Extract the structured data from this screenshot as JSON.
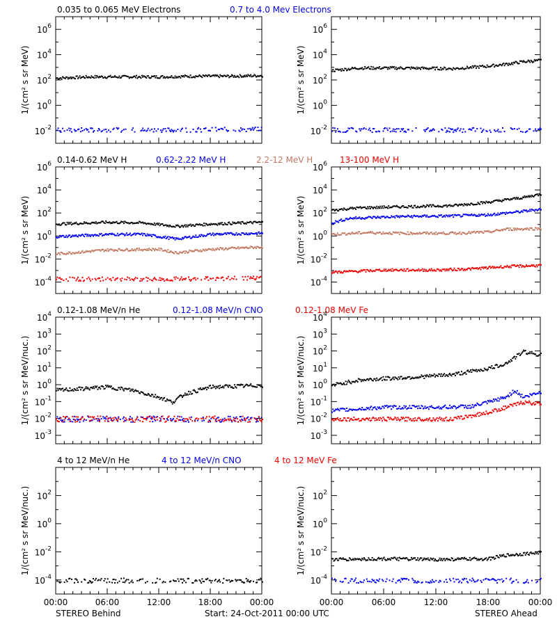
{
  "colors": {
    "black": "#000000",
    "blue": "#0000ee",
    "tan": "#c07860",
    "red": "#ee0000"
  },
  "rows": [
    {
      "ylabel": "1/(cm² s sr MeV)",
      "legend": [
        {
          "text": "0.035 to 0.065 MeV Electrons",
          "color": "#000000"
        },
        {
          "text": "0.7 to 4.0 Mev Electrons",
          "color": "#0000ee"
        }
      ]
    },
    {
      "ylabel": "1/(cm² s sr MeV)",
      "legend": [
        {
          "text": "0.14-0.62 MeV H",
          "color": "#000000"
        },
        {
          "text": "0.62-2.22 MeV H",
          "color": "#0000ee"
        },
        {
          "text": "2.2-12 MeV H",
          "color": "#c07860"
        },
        {
          "text": "13-100 MeV H",
          "color": "#ee0000"
        }
      ]
    },
    {
      "ylabel": "1/(cm² s sr MeV/nuc.)",
      "legend": [
        {
          "text": "0.12-1.08 MeV/n He",
          "color": "#000000"
        },
        {
          "text": "0.12-1.08 MeV/n CNO",
          "color": "#0000ee"
        },
        {
          "text": "0.12-1.08 MeV Fe",
          "color": "#ee0000"
        }
      ]
    },
    {
      "ylabel": "1/(cm² s sr MeV/nuc.)",
      "legend": [
        {
          "text": "4 to 12 MeV/n He",
          "color": "#000000"
        },
        {
          "text": "4 to 12 MeV/n CNO",
          "color": "#0000ee"
        },
        {
          "text": "4 to 12 MeV Fe",
          "color": "#ee0000"
        }
      ]
    }
  ],
  "xticks": [
    "00:00",
    "06:00",
    "12:00",
    "18:00",
    "00:00"
  ],
  "footer": {
    "left": "STEREO Behind",
    "center": "Start: 24-Oct-2011 00:00 UTC",
    "right": "STEREO Ahead"
  },
  "chart_data": [
    {
      "type": "scatter",
      "spacecraft": "STEREO Behind",
      "ylog": true,
      "ylim_exp": [
        -3,
        7
      ],
      "yticks": [
        -2,
        0,
        2,
        4,
        6
      ],
      "x_hours": [
        0,
        24
      ],
      "series": [
        {
          "color": "black",
          "points_hours_log10": [
            [
              0,
              2.2
            ],
            [
              4,
              2.3
            ],
            [
              8,
              2.3
            ],
            [
              12,
              2.3
            ],
            [
              16,
              2.35
            ],
            [
              20,
              2.35
            ],
            [
              24,
              2.4
            ]
          ]
        },
        {
          "color": "blue",
          "points_hours_log10": [
            [
              0,
              -1.9
            ],
            [
              12,
              -1.9
            ],
            [
              24,
              -1.85
            ]
          ]
        }
      ]
    },
    {
      "type": "scatter",
      "spacecraft": "STEREO Ahead",
      "ylog": true,
      "ylim_exp": [
        -3,
        7
      ],
      "yticks": [
        -2,
        0,
        2,
        4,
        6
      ],
      "x_hours": [
        0,
        24
      ],
      "series": [
        {
          "color": "black",
          "points_hours_log10": [
            [
              0,
              2.8
            ],
            [
              3,
              3.0
            ],
            [
              8,
              3.0
            ],
            [
              14,
              2.95
            ],
            [
              18,
              3.15
            ],
            [
              20,
              3.3
            ],
            [
              22,
              3.5
            ],
            [
              24,
              3.6
            ]
          ]
        },
        {
          "color": "blue",
          "points_hours_log10": [
            [
              0,
              -1.9
            ],
            [
              12,
              -1.9
            ],
            [
              24,
              -1.9
            ]
          ]
        }
      ]
    },
    {
      "type": "scatter",
      "spacecraft": "STEREO Behind",
      "ylog": true,
      "ylim_exp": [
        -5,
        6
      ],
      "yticks": [
        -4,
        -2,
        0,
        2,
        4,
        6
      ],
      "x_hours": [
        0,
        24
      ],
      "series": [
        {
          "color": "black",
          "points_hours_log10": [
            [
              0,
              1.1
            ],
            [
              6,
              1.25
            ],
            [
              10,
              1.2
            ],
            [
              14,
              0.9
            ],
            [
              18,
              1.1
            ],
            [
              24,
              1.25
            ]
          ]
        },
        {
          "color": "blue",
          "points_hours_log10": [
            [
              0,
              0.0
            ],
            [
              6,
              0.2
            ],
            [
              10,
              0.2
            ],
            [
              14,
              -0.2
            ],
            [
              18,
              0.2
            ],
            [
              24,
              0.3
            ]
          ]
        },
        {
          "color": "tan",
          "points_hours_log10": [
            [
              0,
              -1.5
            ],
            [
              6,
              -1.15
            ],
            [
              12,
              -1.1
            ],
            [
              14,
              -1.4
            ],
            [
              18,
              -1.1
            ],
            [
              24,
              -0.9
            ]
          ]
        },
        {
          "color": "red",
          "points_hours_log10": [
            [
              0,
              -3.7
            ],
            [
              12,
              -3.7
            ],
            [
              24,
              -3.6
            ]
          ]
        }
      ]
    },
    {
      "type": "scatter",
      "spacecraft": "STEREO Ahead",
      "ylog": true,
      "ylim_exp": [
        -5,
        6
      ],
      "yticks": [
        -4,
        -2,
        0,
        2,
        4,
        6
      ],
      "x_hours": [
        0,
        24
      ],
      "series": [
        {
          "color": "black",
          "points_hours_log10": [
            [
              0,
              2.3
            ],
            [
              3,
              2.5
            ],
            [
              8,
              2.6
            ],
            [
              14,
              2.7
            ],
            [
              18,
              3.0
            ],
            [
              22,
              3.4
            ],
            [
              24,
              3.7
            ]
          ]
        },
        {
          "color": "blue",
          "points_hours_log10": [
            [
              0,
              1.2
            ],
            [
              2,
              1.6
            ],
            [
              8,
              1.75
            ],
            [
              14,
              1.8
            ],
            [
              18,
              1.9
            ],
            [
              22,
              2.2
            ],
            [
              24,
              2.4
            ]
          ]
        },
        {
          "color": "tan",
          "points_hours_log10": [
            [
              0,
              0.2
            ],
            [
              4,
              0.35
            ],
            [
              8,
              0.3
            ],
            [
              14,
              0.3
            ],
            [
              18,
              0.4
            ],
            [
              20,
              0.65
            ],
            [
              24,
              0.7
            ]
          ]
        },
        {
          "color": "red",
          "points_hours_log10": [
            [
              0,
              -3.1
            ],
            [
              6,
              -2.9
            ],
            [
              12,
              -2.9
            ],
            [
              16,
              -2.8
            ],
            [
              20,
              -2.6
            ],
            [
              24,
              -2.5
            ]
          ]
        }
      ]
    },
    {
      "type": "scatter",
      "spacecraft": "STEREO Behind",
      "ylog": true,
      "ylim_exp": [
        -3.5,
        4
      ],
      "yticks": [
        -3,
        -2,
        -1,
        0,
        1,
        2,
        3,
        4
      ],
      "x_hours": [
        0,
        24
      ],
      "series": [
        {
          "color": "black",
          "points_hours_log10": [
            [
              0,
              -0.3
            ],
            [
              3,
              -0.2
            ],
            [
              6,
              -0.1
            ],
            [
              9,
              -0.3
            ],
            [
              12,
              -0.7
            ],
            [
              13.5,
              -1.0
            ],
            [
              15,
              -0.5
            ],
            [
              18,
              -0.1
            ],
            [
              24,
              0.0
            ]
          ]
        },
        {
          "color": "blue",
          "points_hours_log10": [
            [
              0,
              -2.0
            ],
            [
              24,
              -2.0
            ]
          ]
        },
        {
          "color": "red",
          "points_hours_log10": [
            [
              0,
              -2.0
            ],
            [
              24,
              -2.0
            ]
          ]
        }
      ]
    },
    {
      "type": "scatter",
      "spacecraft": "STEREO Ahead",
      "ylog": true,
      "ylim_exp": [
        -3.5,
        4
      ],
      "yticks": [
        -3,
        -2,
        -1,
        0,
        1,
        2,
        3,
        4
      ],
      "x_hours": [
        0,
        24
      ],
      "series": [
        {
          "color": "black",
          "points_hours_log10": [
            [
              0,
              0.0
            ],
            [
              3,
              0.3
            ],
            [
              6,
              0.4
            ],
            [
              10,
              0.5
            ],
            [
              14,
              0.65
            ],
            [
              18,
              1.0
            ],
            [
              20,
              1.3
            ],
            [
              22,
              2.0
            ],
            [
              24,
              1.8
            ]
          ]
        },
        {
          "color": "blue",
          "points_hours_log10": [
            [
              0,
              -1.5
            ],
            [
              6,
              -1.3
            ],
            [
              12,
              -1.3
            ],
            [
              16,
              -1.25
            ],
            [
              18,
              -1.0
            ],
            [
              20,
              -0.7
            ],
            [
              21,
              -0.3
            ],
            [
              22,
              -0.7
            ],
            [
              24,
              -0.4
            ]
          ]
        },
        {
          "color": "red",
          "points_hours_log10": [
            [
              0,
              -2.0
            ],
            [
              8,
              -2.0
            ],
            [
              14,
              -2.0
            ],
            [
              18,
              -1.6
            ],
            [
              20,
              -1.3
            ],
            [
              22,
              -1.0
            ],
            [
              24,
              -1.1
            ]
          ]
        }
      ]
    },
    {
      "type": "scatter",
      "spacecraft": "STEREO Behind",
      "ylog": true,
      "ylim_exp": [
        -5,
        4
      ],
      "yticks": [
        -4,
        -2,
        0,
        2
      ],
      "x_hours": [
        0,
        24
      ],
      "series": [
        {
          "color": "black",
          "points_hours_log10": [
            [
              0,
              -4.0
            ],
            [
              24,
              -4.0
            ]
          ]
        }
      ]
    },
    {
      "type": "scatter",
      "spacecraft": "STEREO Ahead",
      "ylog": true,
      "ylim_exp": [
        -5,
        4
      ],
      "yticks": [
        -4,
        -2,
        0,
        2
      ],
      "x_hours": [
        0,
        24
      ],
      "series": [
        {
          "color": "black",
          "points_hours_log10": [
            [
              0,
              -2.5
            ],
            [
              6,
              -2.45
            ],
            [
              12,
              -2.5
            ],
            [
              18,
              -2.45
            ],
            [
              20,
              -2.2
            ],
            [
              24,
              -2.0
            ]
          ]
        },
        {
          "color": "blue",
          "points_hours_log10": [
            [
              0,
              -4.0
            ],
            [
              12,
              -4.0
            ],
            [
              24,
              -4.0
            ]
          ]
        }
      ]
    }
  ]
}
